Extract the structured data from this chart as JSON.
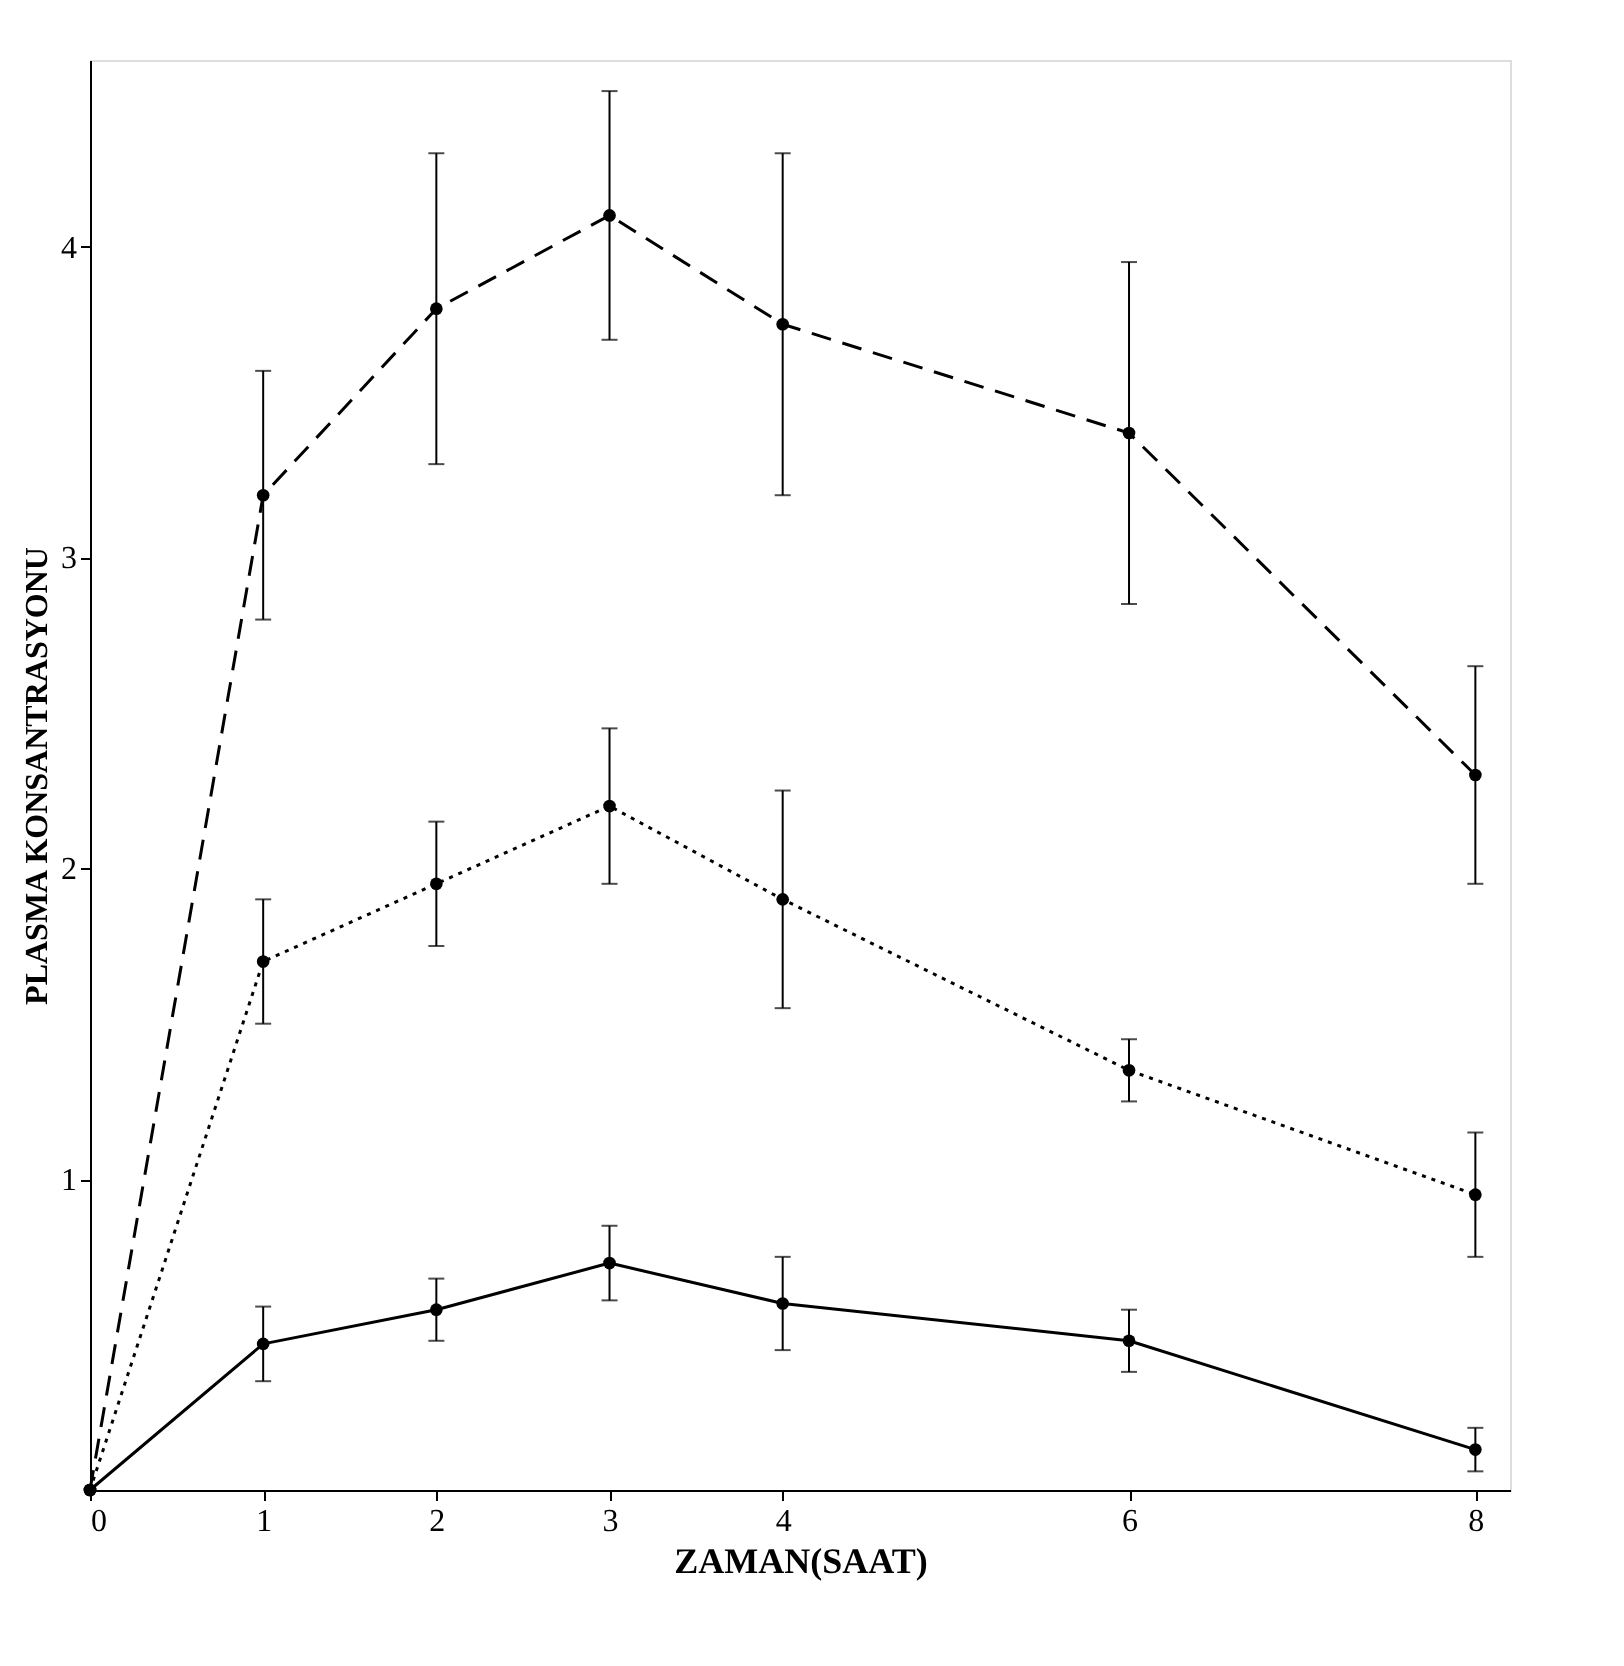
{
  "chart_data": {
    "type": "line",
    "xlabel": "ZAMAN(SAAT)",
    "ylabel": "PLASMA KONSANTRASYONU",
    "x": [
      0,
      1,
      2,
      3,
      4,
      6,
      8
    ],
    "series": [
      {
        "color": "#000000",
        "line_style": "dashed",
        "values": [
          0,
          3.2,
          3.8,
          4.1,
          3.75,
          3.4,
          2.3
        ],
        "errors": [
          null,
          0.4,
          0.5,
          0.4,
          0.55,
          0.55,
          0.35
        ]
      },
      {
        "color": "#000000",
        "line_style": "dotted",
        "values": [
          0,
          1.7,
          1.95,
          2.2,
          1.9,
          1.35,
          0.95
        ],
        "errors": [
          null,
          0.2,
          0.2,
          0.25,
          0.35,
          0.1,
          0.2
        ]
      },
      {
        "color": "#000000",
        "line_style": "solid",
        "values": [
          0,
          0.47,
          0.58,
          0.73,
          0.6,
          0.48,
          0.13
        ],
        "errors": [
          null,
          0.12,
          0.1,
          0.12,
          0.15,
          0.1,
          0.07
        ]
      }
    ],
    "xlim": [
      0,
      8.2
    ],
    "ylim": [
      0,
      4.6
    ],
    "xticks": [
      0,
      1,
      2,
      3,
      4,
      6,
      8
    ],
    "yticks": [
      1,
      2,
      3,
      4
    ],
    "marker": "circle",
    "grid": false
  }
}
